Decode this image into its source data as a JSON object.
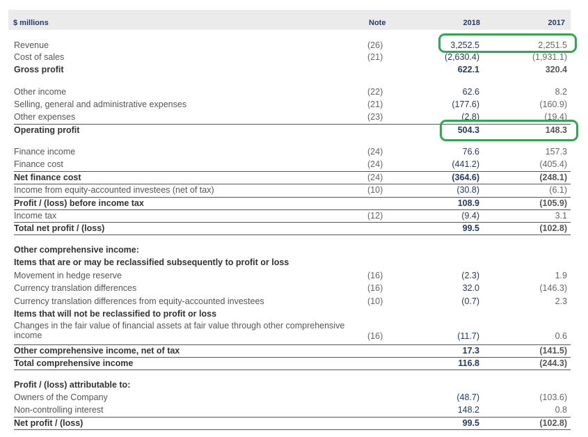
{
  "header": {
    "label": "$ millions",
    "note": "Note",
    "y2018": "2018",
    "y2017": "2017"
  },
  "rows": [
    {
      "label": "Revenue",
      "note": "(26)",
      "v2018": "3,252.5",
      "v2017": "2,251.5"
    },
    {
      "label": "Cost of sales",
      "note": "(21)",
      "v2018": "(2,630.4)",
      "v2017": "(1,931.1)"
    },
    {
      "label": "Gross profit",
      "note": "",
      "v2018": "622.1",
      "v2017": "320.4"
    },
    {
      "label": "Other income",
      "note": "(22)",
      "v2018": "62.6",
      "v2017": "8.2"
    },
    {
      "label": "Selling, general and administrative expenses",
      "note": "(21)",
      "v2018": "(177.6)",
      "v2017": "(160.9)"
    },
    {
      "label": "Other expenses",
      "note": "(23)",
      "v2018": "(2.8)",
      "v2017": "(19.4)"
    },
    {
      "label": "Operating profit",
      "note": "",
      "v2018": "504.3",
      "v2017": "148.3"
    },
    {
      "label": "Finance income",
      "note": "(24)",
      "v2018": "76.6",
      "v2017": "157.3"
    },
    {
      "label": "Finance cost",
      "note": "(24)",
      "v2018": "(441.2)",
      "v2017": "(405.4)"
    },
    {
      "label": "Net finance cost",
      "note": "(24)",
      "v2018": "(364.6)",
      "v2017": "(248.1)"
    },
    {
      "label": "Income from equity-accounted investees (net of tax)",
      "note": "(10)",
      "v2018": "(30.8)",
      "v2017": "(6.1)"
    },
    {
      "label": "Profit / (loss) before income tax",
      "note": "",
      "v2018": "108.9",
      "v2017": "(105.9)"
    },
    {
      "label": "Income tax",
      "note": "(12)",
      "v2018": "(9.4)",
      "v2017": "3.1"
    },
    {
      "label": "Total net profit / (loss)",
      "note": "",
      "v2018": "99.5",
      "v2017": "(102.8)"
    },
    {
      "label": "Other comprehensive income:",
      "note": "",
      "v2018": "",
      "v2017": ""
    },
    {
      "label": "Items that are or may be reclassified subsequently to profit or loss",
      "note": "",
      "v2018": "",
      "v2017": ""
    },
    {
      "label": "Movement in hedge reserve",
      "note": "(16)",
      "v2018": "(2.3)",
      "v2017": "1.9"
    },
    {
      "label": "Currency translation differences",
      "note": "(16)",
      "v2018": "32.0",
      "v2017": "(146.3)"
    },
    {
      "label": "Currency translation differences from equity-accounted investees",
      "note": "(10)",
      "v2018": "(0.7)",
      "v2017": "2.3"
    },
    {
      "label": "Items that will not be reclassified to profit or loss",
      "note": "",
      "v2018": "",
      "v2017": ""
    },
    {
      "label": "Changes in the fair value of financial assets at fair value through other comprehensive income",
      "note": "(16)",
      "v2018": "(11.7)",
      "v2017": "0.6"
    },
    {
      "label": "Other comprehensive income, net of tax",
      "note": "",
      "v2018": "17.3",
      "v2017": "(141.5)"
    },
    {
      "label": "Total comprehensive income",
      "note": "",
      "v2018": "116.8",
      "v2017": "(244.3)"
    },
    {
      "label": "Profit / (loss) attributable to:",
      "note": "",
      "v2018": "",
      "v2017": ""
    },
    {
      "label": "Owners of the Company",
      "note": "",
      "v2018": "(48.7)",
      "v2017": "(103.6)"
    },
    {
      "label": "Non-controlling interest",
      "note": "",
      "v2018": "148.2",
      "v2017": "0.8"
    },
    {
      "label": "Net profit / (loss)",
      "note": "",
      "v2018": "99.5",
      "v2017": "(102.8)"
    }
  ],
  "highlight_color": "#2fa84f"
}
